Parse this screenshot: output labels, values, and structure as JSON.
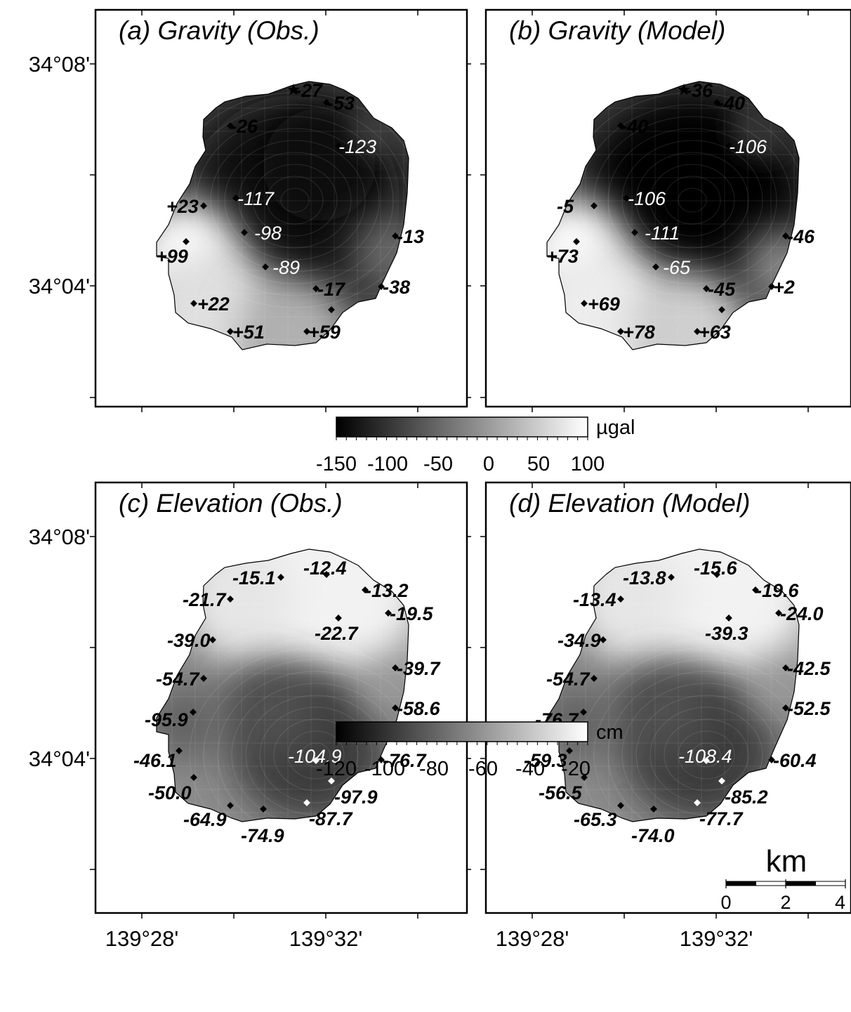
{
  "axes": {
    "lat_labels": [
      "34°08'",
      "34°04'"
    ],
    "lon_labels": [
      "139°28'",
      "139°32'"
    ]
  },
  "panels": [
    {
      "id": "a",
      "title": "(a) Gravity (Obs.)",
      "kind": "gravity",
      "variant": "obs",
      "points": [
        {
          "label": "-27",
          "light": false,
          "marker": "star"
        },
        {
          "label": "-53",
          "light": false
        },
        {
          "label": "-26",
          "light": false
        },
        {
          "label": "-123",
          "light": true
        },
        {
          "label": "+23",
          "light": false
        },
        {
          "label": "-117",
          "light": true
        },
        {
          "label": "-98",
          "light": true
        },
        {
          "label": "-13",
          "light": false
        },
        {
          "label": "+99",
          "light": false
        },
        {
          "label": "-89",
          "light": true
        },
        {
          "label": "-17",
          "light": false
        },
        {
          "label": "-38",
          "light": false
        },
        {
          "label": "+22",
          "light": false
        },
        {
          "label": "+51",
          "light": false
        },
        {
          "label": "+59",
          "light": false
        },
        {
          "label": "",
          "light": false
        }
      ]
    },
    {
      "id": "b",
      "title": "(b) Gravity (Model)",
      "kind": "gravity",
      "variant": "model",
      "points": [
        {
          "label": "-36",
          "light": false,
          "marker": "star"
        },
        {
          "label": "-40",
          "light": false
        },
        {
          "label": "-40",
          "light": false
        },
        {
          "label": "-106",
          "light": true
        },
        {
          "label": "-5",
          "light": false
        },
        {
          "label": "-106",
          "light": true
        },
        {
          "label": "-111",
          "light": true
        },
        {
          "label": "-46",
          "light": false
        },
        {
          "label": "+73",
          "light": false
        },
        {
          "label": "-65",
          "light": true
        },
        {
          "label": "-45",
          "light": false
        },
        {
          "label": "+2",
          "light": false
        },
        {
          "label": "+69",
          "light": false
        },
        {
          "label": "+78",
          "light": false
        },
        {
          "label": "+63",
          "light": false
        },
        {
          "label": "",
          "light": false
        }
      ]
    },
    {
      "id": "c",
      "title": "(c) Elevation (Obs.)",
      "kind": "elevation",
      "variant": "obs",
      "points": [
        {
          "label": "-15.1",
          "light": false
        },
        {
          "label": "-12.4",
          "light": false
        },
        {
          "label": "-13.2",
          "light": false
        },
        {
          "label": "-21.7",
          "light": false
        },
        {
          "label": "-19.5",
          "light": false
        },
        {
          "label": "-22.7",
          "light": false
        },
        {
          "label": "-39.0",
          "light": false
        },
        {
          "label": "-39.7",
          "light": false
        },
        {
          "label": "-54.7",
          "light": false
        },
        {
          "label": "-58.6",
          "light": false
        },
        {
          "label": "-95.9",
          "light": false
        },
        {
          "label": "-104.9",
          "light": true,
          "marker_light": true
        },
        {
          "label": "-76.7",
          "light": false
        },
        {
          "label": "-46.1",
          "light": false
        },
        {
          "label": "-97.9",
          "light": false,
          "marker_light": true
        },
        {
          "label": "-50.0",
          "light": false
        },
        {
          "label": "-87.7",
          "light": false,
          "marker_light": true
        },
        {
          "label": "-64.9",
          "light": false
        },
        {
          "label": "-74.9",
          "light": false
        }
      ]
    },
    {
      "id": "d",
      "title": "(d) Elevation (Model)",
      "kind": "elevation",
      "variant": "model",
      "points": [
        {
          "label": "-13.8",
          "light": false
        },
        {
          "label": "-15.6",
          "light": false
        },
        {
          "label": "-19.6",
          "light": false
        },
        {
          "label": "-13.4",
          "light": false
        },
        {
          "label": "-24.0",
          "light": false
        },
        {
          "label": "-39.3",
          "light": false
        },
        {
          "label": "-34.9",
          "light": false
        },
        {
          "label": "-42.5",
          "light": false
        },
        {
          "label": "-54.7",
          "light": false
        },
        {
          "label": "-52.5",
          "light": false
        },
        {
          "label": "-76.7",
          "light": false
        },
        {
          "label": "-108.4",
          "light": true,
          "marker_light": true
        },
        {
          "label": "-60.4",
          "light": false
        },
        {
          "label": "-59.3",
          "light": false
        },
        {
          "label": "-85.2",
          "light": false,
          "marker_light": true
        },
        {
          "label": "-56.5",
          "light": false
        },
        {
          "label": "-77.7",
          "light": false,
          "marker_light": true
        },
        {
          "label": "-65.3",
          "light": false
        },
        {
          "label": "-74.0",
          "light": false
        }
      ]
    }
  ],
  "colorbars": [
    {
      "id": "gravity",
      "unit": "µgal",
      "ticks": [
        "-150",
        "-100",
        "-50",
        "0",
        "50",
        "100"
      ],
      "range": [
        -150,
        100
      ]
    },
    {
      "id": "elevation",
      "unit": "cm",
      "ticks": [
        "-120",
        "-100",
        "-80",
        "-60",
        "-40",
        "-20"
      ],
      "range": [
        -130,
        -10
      ]
    }
  ],
  "scalebar": {
    "unit": "km",
    "ticks": [
      "0",
      "2",
      "4"
    ]
  },
  "colors": {
    "dark": "#0a0a0a",
    "light": "#ffffff",
    "frame": "#000000"
  }
}
